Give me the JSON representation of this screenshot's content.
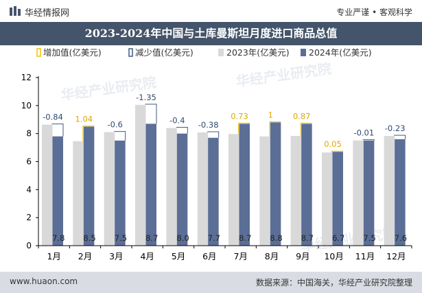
{
  "header": {
    "brand": "华经情报网",
    "tagline": "专业严谨 • 客观科学"
  },
  "footer": {
    "site": "www.huaon.com",
    "source": "数据来源：中国海关，华经产业研究院整理"
  },
  "watermark": "华经产业研究院",
  "colors": {
    "increase": "#f2c100",
    "decrease": "#3d5a80",
    "series2023": "#d9d9d9",
    "series2024": "#5b6e96",
    "title_bg": "#44546a"
  },
  "chart_data": {
    "type": "bar",
    "title": "2023-2024年中国与土库曼斯坦月度进口商品总值",
    "categories": [
      "1月",
      "2月",
      "3月",
      "4月",
      "5月",
      "6月",
      "7月",
      "8月",
      "9月",
      "10月",
      "11月",
      "12月"
    ],
    "series": [
      {
        "name": "2023年(亿美元)",
        "values": [
          8.64,
          7.46,
          8.1,
          10.05,
          8.4,
          8.08,
          7.97,
          7.8,
          7.83,
          6.65,
          7.51,
          7.83
        ]
      },
      {
        "name": "2024年(亿美元)",
        "values": [
          7.8,
          8.5,
          7.5,
          8.7,
          8.0,
          7.7,
          8.7,
          8.8,
          8.7,
          6.7,
          7.5,
          7.6
        ]
      }
    ],
    "change_labels": [
      "-0.84",
      "1.04",
      "-0.6",
      "-1.35",
      "-0.4",
      "-0.38",
      "0.73",
      "1",
      "0.87",
      "0.05",
      "-0.01",
      "-0.23"
    ],
    "value_labels": [
      "7.8",
      "8.5",
      "7.5",
      "8.7",
      "8.0",
      "7.7",
      "8.7",
      "8.8",
      "8.7",
      "6.7",
      "7.5",
      "7.6"
    ],
    "legend": [
      "增加值(亿美元)",
      "减少值(亿美元)",
      "2023年(亿美元)",
      "2024年(亿美元)"
    ],
    "y_ticks": [
      "0",
      "2",
      "4",
      "6",
      "8",
      "10",
      "12"
    ],
    "ylim": [
      0,
      12
    ],
    "xlabel": "",
    "ylabel": ""
  }
}
